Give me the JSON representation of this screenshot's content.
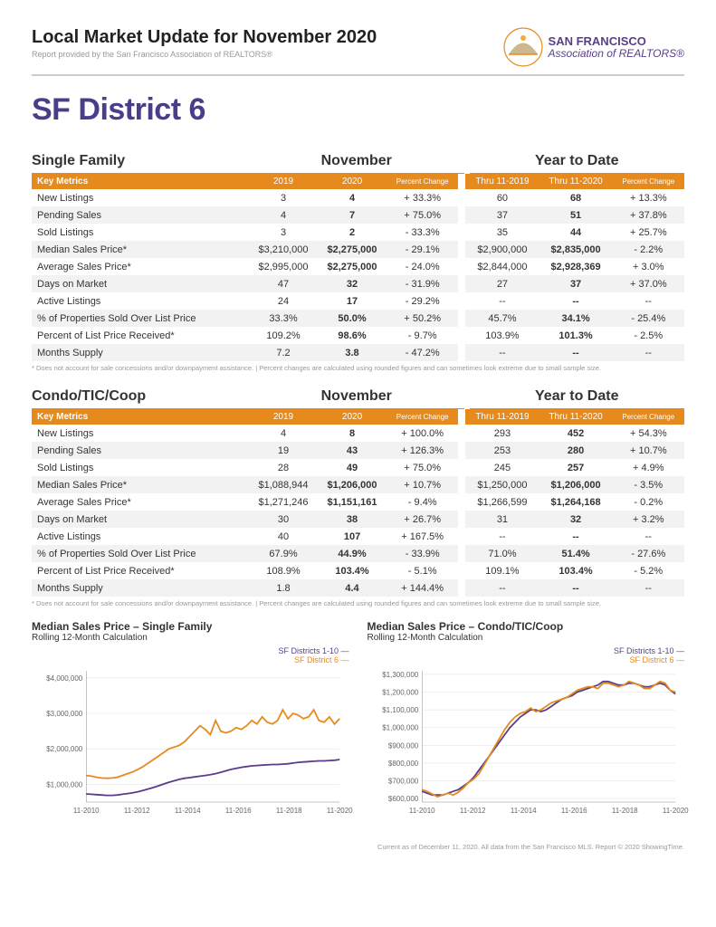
{
  "header": {
    "title": "Local Market Update for November 2020",
    "subtitle": "Report provided by the San Francisco Association of REALTORS®",
    "org_line1": "SAN FRANCISCO",
    "org_line2": "Association of REALTORS®"
  },
  "district_title": "SF District 6",
  "tables": [
    {
      "type_label": "Single Family",
      "period1": "November",
      "period2": "Year to Date",
      "col_headers": [
        "Key Metrics",
        "2019",
        "2020",
        "Percent Change",
        "Thru 11-2019",
        "Thru 11-2020",
        "Percent Change"
      ],
      "rows": [
        [
          "New Listings",
          "3",
          "4",
          "+ 33.3%",
          "60",
          "68",
          "+ 13.3%"
        ],
        [
          "Pending Sales",
          "4",
          "7",
          "+ 75.0%",
          "37",
          "51",
          "+ 37.8%"
        ],
        [
          "Sold Listings",
          "3",
          "2",
          "- 33.3%",
          "35",
          "44",
          "+ 25.7%"
        ],
        [
          "Median Sales Price*",
          "$3,210,000",
          "$2,275,000",
          "- 29.1%",
          "$2,900,000",
          "$2,835,000",
          "- 2.2%"
        ],
        [
          "Average Sales Price*",
          "$2,995,000",
          "$2,275,000",
          "- 24.0%",
          "$2,844,000",
          "$2,928,369",
          "+ 3.0%"
        ],
        [
          "Days on Market",
          "47",
          "32",
          "- 31.9%",
          "27",
          "37",
          "+ 37.0%"
        ],
        [
          "Active Listings",
          "24",
          "17",
          "- 29.2%",
          "--",
          "--",
          "--"
        ],
        [
          "% of Properties Sold Over List Price",
          "33.3%",
          "50.0%",
          "+ 50.2%",
          "45.7%",
          "34.1%",
          "- 25.4%"
        ],
        [
          "Percent of List Price Received*",
          "109.2%",
          "98.6%",
          "- 9.7%",
          "103.9%",
          "101.3%",
          "- 2.5%"
        ],
        [
          "Months Supply",
          "7.2",
          "3.8",
          "- 47.2%",
          "--",
          "--",
          "--"
        ]
      ]
    },
    {
      "type_label": "Condo/TIC/Coop",
      "period1": "November",
      "period2": "Year to Date",
      "col_headers": [
        "Key Metrics",
        "2019",
        "2020",
        "Percent Change",
        "Thru 11-2019",
        "Thru 11-2020",
        "Percent Change"
      ],
      "rows": [
        [
          "New Listings",
          "4",
          "8",
          "+ 100.0%",
          "293",
          "452",
          "+ 54.3%"
        ],
        [
          "Pending Sales",
          "19",
          "43",
          "+ 126.3%",
          "253",
          "280",
          "+ 10.7%"
        ],
        [
          "Sold Listings",
          "28",
          "49",
          "+ 75.0%",
          "245",
          "257",
          "+ 4.9%"
        ],
        [
          "Median Sales Price*",
          "$1,088,944",
          "$1,206,000",
          "+ 10.7%",
          "$1,250,000",
          "$1,206,000",
          "- 3.5%"
        ],
        [
          "Average Sales Price*",
          "$1,271,246",
          "$1,151,161",
          "- 9.4%",
          "$1,266,599",
          "$1,264,168",
          "- 0.2%"
        ],
        [
          "Days on Market",
          "30",
          "38",
          "+ 26.7%",
          "31",
          "32",
          "+ 3.2%"
        ],
        [
          "Active Listings",
          "40",
          "107",
          "+ 167.5%",
          "--",
          "--",
          "--"
        ],
        [
          "% of Properties Sold Over List Price",
          "67.9%",
          "44.9%",
          "- 33.9%",
          "71.0%",
          "51.4%",
          "- 27.6%"
        ],
        [
          "Percent of List Price Received*",
          "108.9%",
          "103.4%",
          "- 5.1%",
          "109.1%",
          "103.4%",
          "- 5.2%"
        ],
        [
          "Months Supply",
          "1.8",
          "4.4",
          "+ 144.4%",
          "--",
          "--",
          "--"
        ]
      ]
    }
  ],
  "footnote": "* Does not account for sale concessions and/or downpayment assistance.  |  Percent changes are calculated using rounded figures and can sometimes look extreme due to small sample size.",
  "charts": [
    {
      "title": "Median Sales Price – Single Family",
      "subtitle": "Rolling 12-Month Calculation",
      "legend1": "SF Districts 1-10 —",
      "legend2": "SF District 6 —",
      "type": "line",
      "x_ticks": [
        "11-2010",
        "11-2012",
        "11-2014",
        "11-2016",
        "11-2018",
        "11-2020"
      ],
      "y_ticks": [
        "$1,000,000",
        "$2,000,000",
        "$3,000,000",
        "$4,000,000"
      ],
      "y_min": 500000,
      "y_max": 4200000,
      "series1_color": "#5a3d8a",
      "series2_color": "#e68a1e",
      "series1": [
        730,
        720,
        710,
        700,
        690,
        690,
        700,
        720,
        740,
        760,
        790,
        830,
        870,
        910,
        960,
        1010,
        1060,
        1100,
        1140,
        1170,
        1190,
        1210,
        1230,
        1250,
        1270,
        1300,
        1340,
        1380,
        1420,
        1450,
        1480,
        1500,
        1520,
        1530,
        1540,
        1550,
        1560,
        1560,
        1570,
        1580,
        1600,
        1620,
        1630,
        1640,
        1650,
        1660,
        1660,
        1670,
        1680,
        1700
      ],
      "series2": [
        1250,
        1230,
        1200,
        1180,
        1170,
        1180,
        1200,
        1250,
        1300,
        1350,
        1420,
        1500,
        1600,
        1700,
        1800,
        1900,
        2000,
        2050,
        2100,
        2200,
        2350,
        2500,
        2650,
        2550,
        2400,
        2800,
        2500,
        2450,
        2500,
        2600,
        2550,
        2650,
        2800,
        2700,
        2900,
        2750,
        2700,
        2800,
        3100,
        2850,
        3000,
        2950,
        2850,
        2900,
        3100,
        2800,
        2750,
        2900,
        2700,
        2850
      ]
    },
    {
      "title": "Median Sales Price – Condo/TIC/Coop",
      "subtitle": "Rolling 12-Month Calculation",
      "legend1": "SF Districts 1-10 —",
      "legend2": "SF District 6 —",
      "type": "line",
      "x_ticks": [
        "11-2010",
        "11-2012",
        "11-2014",
        "11-2016",
        "11-2018",
        "11-2020"
      ],
      "y_ticks": [
        "$600,000",
        "$700,000",
        "$800,000",
        "$900,000",
        "$1,000,000",
        "$1,100,000",
        "$1,200,000",
        "$1,300,000"
      ],
      "y_min": 580000,
      "y_max": 1320000,
      "series1_color": "#5a3d8a",
      "series2_color": "#e68a1e",
      "series1": [
        640,
        630,
        620,
        620,
        620,
        630,
        640,
        650,
        670,
        690,
        720,
        760,
        800,
        840,
        880,
        920,
        960,
        1000,
        1030,
        1060,
        1080,
        1100,
        1100,
        1090,
        1100,
        1120,
        1140,
        1160,
        1170,
        1180,
        1200,
        1210,
        1220,
        1230,
        1240,
        1260,
        1260,
        1250,
        1240,
        1240,
        1250,
        1250,
        1240,
        1230,
        1230,
        1240,
        1250,
        1240,
        1210,
        1190
      ],
      "series2": [
        650,
        640,
        625,
        610,
        620,
        630,
        620,
        635,
        660,
        690,
        710,
        740,
        790,
        840,
        890,
        940,
        990,
        1030,
        1060,
        1080,
        1090,
        1110,
        1090,
        1100,
        1120,
        1140,
        1150,
        1160,
        1170,
        1190,
        1210,
        1220,
        1230,
        1230,
        1220,
        1250,
        1250,
        1240,
        1230,
        1240,
        1260,
        1250,
        1240,
        1220,
        1220,
        1240,
        1260,
        1250,
        1210,
        1200
      ]
    }
  ],
  "page_footer": "Current as of December 11, 2020. All data from the San Francisco MLS. Report © 2020 ShowingTime.",
  "colors": {
    "accent_orange": "#e68a1e",
    "accent_purple": "#5a3d8a",
    "title_purple": "#4a3d8a"
  }
}
